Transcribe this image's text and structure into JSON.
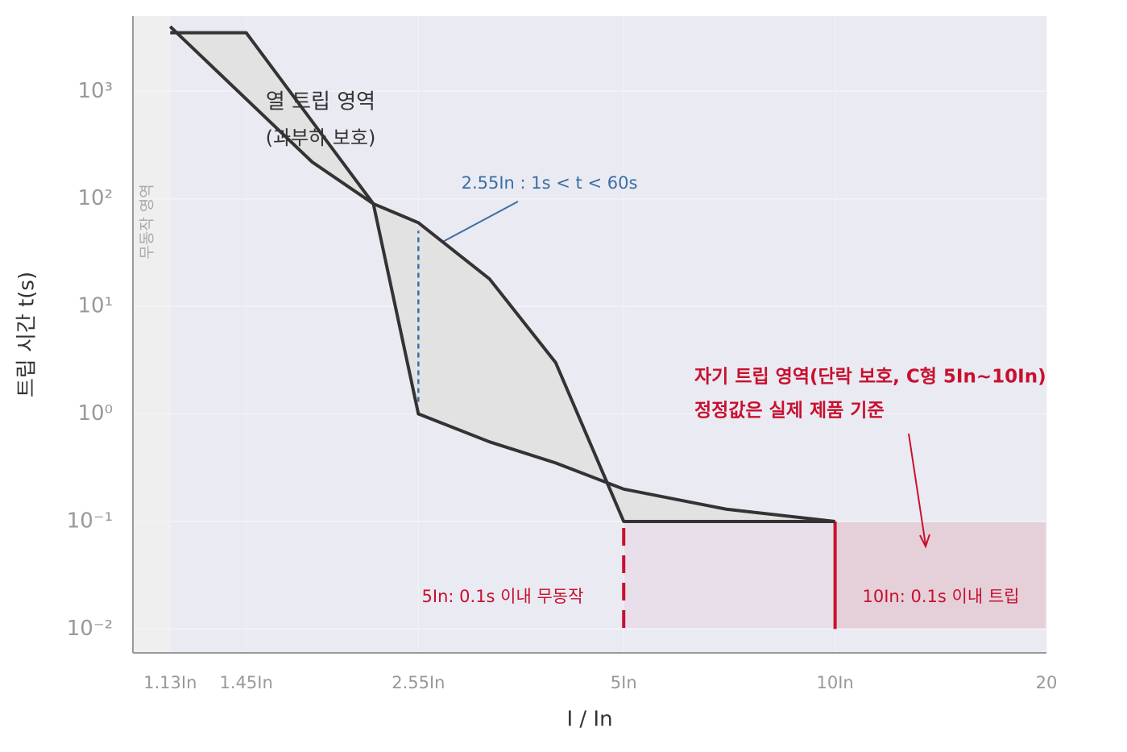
{
  "chart_data": {
    "type": "line",
    "x_label": "I / In",
    "y_label": "트립 시간 t(s)",
    "xscale": "log",
    "yscale": "log",
    "grid": true,
    "xlim": [
      1,
      20
    ],
    "ylim": [
      0.006,
      5000
    ],
    "xticks": [
      {
        "value": 1.13,
        "label": "1.13In"
      },
      {
        "value": 1.45,
        "label": "1.45In"
      },
      {
        "value": 2.55,
        "label": "2.55In"
      },
      {
        "value": 5,
        "label": "5In"
      },
      {
        "value": 10,
        "label": "10In"
      },
      20
    ],
    "yticks": [
      {
        "value": 0.01,
        "label": "10⁻²"
      },
      {
        "value": 0.1,
        "label": "10⁻¹"
      },
      {
        "value": 1,
        "label": "10⁰"
      },
      {
        "value": 10,
        "label": "10¹"
      },
      {
        "value": 100,
        "label": "10²"
      },
      {
        "value": 1000,
        "label": "10³"
      }
    ],
    "series": [
      {
        "color": "#333333",
        "x": [
          1.13,
          1.8,
          2.2,
          2.55,
          3.22,
          4,
          5,
          10
        ],
        "values": [
          4000,
          220,
          90,
          60,
          18,
          3,
          0.1,
          0.1
        ]
      },
      {
        "color": "#333333",
        "x": [
          1.13,
          1.45,
          2.2,
          2.55,
          3.22,
          4,
          5,
          7,
          10
        ],
        "values": [
          3500,
          3500,
          90,
          1,
          0.55,
          0.35,
          0.2,
          0.13,
          0.1
        ]
      }
    ],
    "annotations": [
      "열 트립 영역",
      "(과부하 보호)",
      "2.55In : 1s < t < 60s",
      "자기 트립 영역(단락 보호, C형 5In~10In)",
      "정정값은 실제 제품 기준",
      "5In: 0.1s 이내 무동작",
      "10In: 0.1s 이내 트립",
      "무동작 영역"
    ]
  }
}
